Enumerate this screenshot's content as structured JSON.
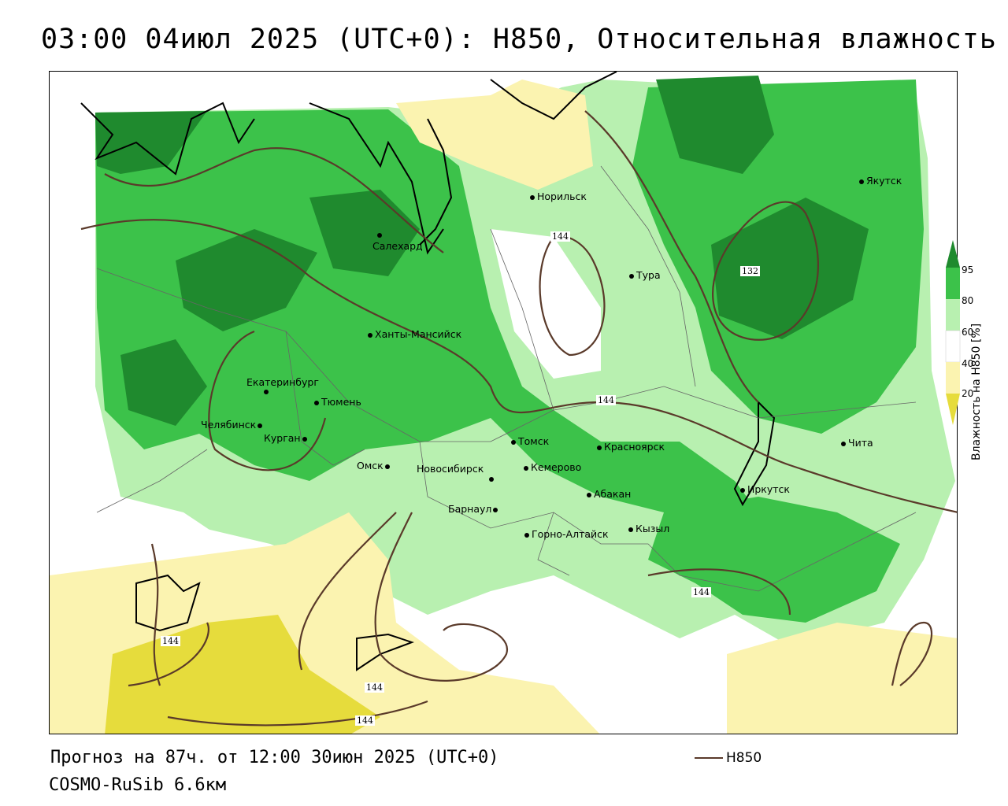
{
  "title": "03:00 04июл 2025 (UTC+0): H850, Относительная влажность",
  "forecast_line": "Прогноз на 87ч. от 12:00 30июн 2025 (UTC+0)",
  "model_line": "COSMO-RuSib 6.6км",
  "line_legend_label": "H850",
  "colors": {
    "rh_95": "#1f8a2e",
    "rh_80": "#3cc24a",
    "rh_60": "#b8f0b0",
    "rh_40_60": "#ffffff",
    "rh_20": "#fbf3b0",
    "rh_lt20": "#e6dc3c",
    "contour": "#5a3a2a",
    "border": "#000000"
  },
  "legend": {
    "title": "Влажность на H850 [%]",
    "ticks": [
      "95",
      "80",
      "60",
      "40",
      "20"
    ]
  },
  "contour_labels": [
    "144",
    "132",
    "144",
    "144",
    "144",
    "144",
    "144"
  ],
  "cities": [
    {
      "name": "Норильск"
    },
    {
      "name": "Якутск"
    },
    {
      "name": "Салехард"
    },
    {
      "name": "Тура"
    },
    {
      "name": "Ханты-Мансийск"
    },
    {
      "name": "Екатеринбург"
    },
    {
      "name": "Тюмень"
    },
    {
      "name": "Челябинск"
    },
    {
      "name": "Курган"
    },
    {
      "name": "Омск"
    },
    {
      "name": "Новосибирск"
    },
    {
      "name": "Томск"
    },
    {
      "name": "Кемерово"
    },
    {
      "name": "Красноярск"
    },
    {
      "name": "Барнаул"
    },
    {
      "name": "Абакан"
    },
    {
      "name": "Горно-Алтайск"
    },
    {
      "name": "Кызыл"
    },
    {
      "name": "Иркутск"
    },
    {
      "name": "Чита"
    }
  ]
}
